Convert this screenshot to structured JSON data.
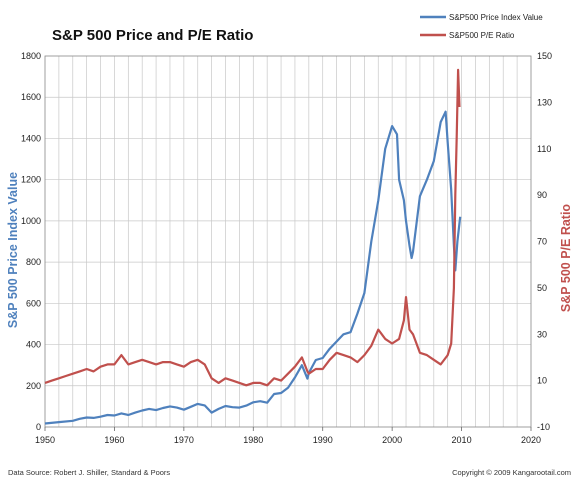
{
  "chart_data": {
    "type": "line",
    "title": "S&P 500 Price and P/E Ratio",
    "ylabel_left": "S&P 500 Price Index Value",
    "ylabel_right": "S&P 500 P/E Ratio",
    "xlim": [
      1950,
      2020
    ],
    "ylim_left": [
      0,
      1800
    ],
    "ylim_right": [
      -10,
      150
    ],
    "x_ticks": [
      "1950",
      "1960",
      "1970",
      "1980",
      "1990",
      "2000",
      "2010",
      "2020"
    ],
    "y_left_ticks": [
      "0",
      "200",
      "400",
      "600",
      "800",
      "1000",
      "1200",
      "1400",
      "1600",
      "1800"
    ],
    "y_right_ticks": [
      "-10",
      "10",
      "30",
      "50",
      "70",
      "90",
      "110",
      "130",
      "150"
    ],
    "grid": true,
    "legend_position": "top-right",
    "colors": {
      "price": "#4f81bd",
      "pe": "#c0504d"
    },
    "series": [
      {
        "name": "S&P500 Price Index Value",
        "axis": "left",
        "color": "#4f81bd",
        "points": [
          [
            1950,
            17
          ],
          [
            1952,
            24
          ],
          [
            1954,
            30
          ],
          [
            1955,
            40
          ],
          [
            1956,
            46
          ],
          [
            1957,
            44
          ],
          [
            1958,
            50
          ],
          [
            1959,
            58
          ],
          [
            1960,
            56
          ],
          [
            1961,
            66
          ],
          [
            1962,
            58
          ],
          [
            1963,
            70
          ],
          [
            1964,
            80
          ],
          [
            1965,
            88
          ],
          [
            1966,
            82
          ],
          [
            1967,
            92
          ],
          [
            1968,
            100
          ],
          [
            1969,
            94
          ],
          [
            1970,
            84
          ],
          [
            1971,
            98
          ],
          [
            1972,
            112
          ],
          [
            1973,
            105
          ],
          [
            1974,
            70
          ],
          [
            1975,
            88
          ],
          [
            1976,
            102
          ],
          [
            1977,
            96
          ],
          [
            1978,
            94
          ],
          [
            1979,
            104
          ],
          [
            1980,
            120
          ],
          [
            1981,
            125
          ],
          [
            1982,
            118
          ],
          [
            1983,
            160
          ],
          [
            1984,
            165
          ],
          [
            1985,
            190
          ],
          [
            1986,
            240
          ],
          [
            1987,
            300
          ],
          [
            1987.8,
            235
          ],
          [
            1988,
            262
          ],
          [
            1989,
            325
          ],
          [
            1990,
            335
          ],
          [
            1991,
            380
          ],
          [
            1992,
            415
          ],
          [
            1993,
            450
          ],
          [
            1994,
            460
          ],
          [
            1995,
            550
          ],
          [
            1996,
            650
          ],
          [
            1997,
            900
          ],
          [
            1998,
            1100
          ],
          [
            1999,
            1350
          ],
          [
            2000,
            1460
          ],
          [
            2000.7,
            1420
          ],
          [
            2001,
            1200
          ],
          [
            2001.7,
            1100
          ],
          [
            2002,
            1000
          ],
          [
            2002.5,
            880
          ],
          [
            2002.8,
            820
          ],
          [
            2003,
            850
          ],
          [
            2004,
            1120
          ],
          [
            2005,
            1200
          ],
          [
            2006,
            1290
          ],
          [
            2007,
            1480
          ],
          [
            2007.7,
            1530
          ],
          [
            2008,
            1380
          ],
          [
            2008.5,
            1150
          ],
          [
            2008.9,
            880
          ],
          [
            2009.1,
            760
          ],
          [
            2009.4,
            900
          ],
          [
            2009.8,
            1020
          ]
        ]
      },
      {
        "name": "S&P500 P/E Ratio",
        "axis": "right",
        "color": "#c0504d",
        "points": [
          [
            1950,
            9
          ],
          [
            1951,
            10
          ],
          [
            1952,
            11
          ],
          [
            1953,
            12
          ],
          [
            1954,
            13
          ],
          [
            1955,
            14
          ],
          [
            1956,
            15
          ],
          [
            1957,
            14
          ],
          [
            1958,
            16
          ],
          [
            1959,
            17
          ],
          [
            1960,
            17
          ],
          [
            1961,
            21
          ],
          [
            1962,
            17
          ],
          [
            1963,
            18
          ],
          [
            1964,
            19
          ],
          [
            1965,
            18
          ],
          [
            1966,
            17
          ],
          [
            1967,
            18
          ],
          [
            1968,
            18
          ],
          [
            1969,
            17
          ],
          [
            1970,
            16
          ],
          [
            1971,
            18
          ],
          [
            1972,
            19
          ],
          [
            1973,
            17
          ],
          [
            1974,
            11
          ],
          [
            1975,
            9
          ],
          [
            1976,
            11
          ],
          [
            1977,
            10
          ],
          [
            1978,
            9
          ],
          [
            1979,
            8
          ],
          [
            1980,
            9
          ],
          [
            1981,
            9
          ],
          [
            1982,
            8
          ],
          [
            1983,
            11
          ],
          [
            1984,
            10
          ],
          [
            1985,
            13
          ],
          [
            1986,
            16
          ],
          [
            1987,
            20
          ],
          [
            1987.8,
            14
          ],
          [
            1988,
            13
          ],
          [
            1989,
            15
          ],
          [
            1990,
            15
          ],
          [
            1991,
            19
          ],
          [
            1992,
            22
          ],
          [
            1993,
            21
          ],
          [
            1994,
            20
          ],
          [
            1995,
            18
          ],
          [
            1996,
            21
          ],
          [
            1997,
            25
          ],
          [
            1998,
            32
          ],
          [
            1999,
            28
          ],
          [
            2000,
            26
          ],
          [
            2001,
            28
          ],
          [
            2001.7,
            36
          ],
          [
            2002,
            46
          ],
          [
            2002.5,
            32
          ],
          [
            2003,
            30
          ],
          [
            2004,
            22
          ],
          [
            2005,
            21
          ],
          [
            2006,
            19
          ],
          [
            2007,
            17
          ],
          [
            2008,
            21
          ],
          [
            2008.5,
            26
          ],
          [
            2008.9,
            50
          ],
          [
            2009.1,
            90
          ],
          [
            2009.3,
            115
          ],
          [
            2009.5,
            144
          ],
          [
            2009.7,
            128
          ]
        ]
      }
    ]
  },
  "footer": {
    "source": "Data Source: Robert J. Shiller, Standard & Poors",
    "copyright": "Copyright © 2009 Kangarootail.com"
  }
}
